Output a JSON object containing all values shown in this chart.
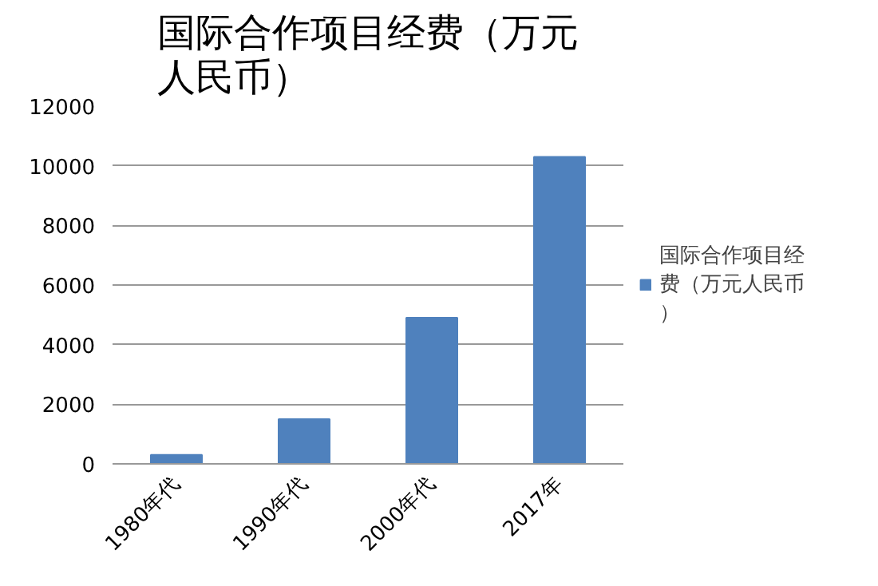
{
  "chart_data": {
    "type": "bar",
    "title": "国际合作项目经费（万元人民币）",
    "categories": [
      "1980年代",
      "1990年代",
      "2000年代",
      "2017年"
    ],
    "series": [
      {
        "name": "国际合作项目经费（万元人民币）",
        "color": "#4f81bd",
        "values": [
          300,
          1500,
          4900,
          10300
        ]
      }
    ],
    "ylim": [
      0,
      12000
    ],
    "yticks": [
      0,
      2000,
      4000,
      6000,
      8000,
      10000,
      12000
    ],
    "grid": "y",
    "legend": "right"
  }
}
